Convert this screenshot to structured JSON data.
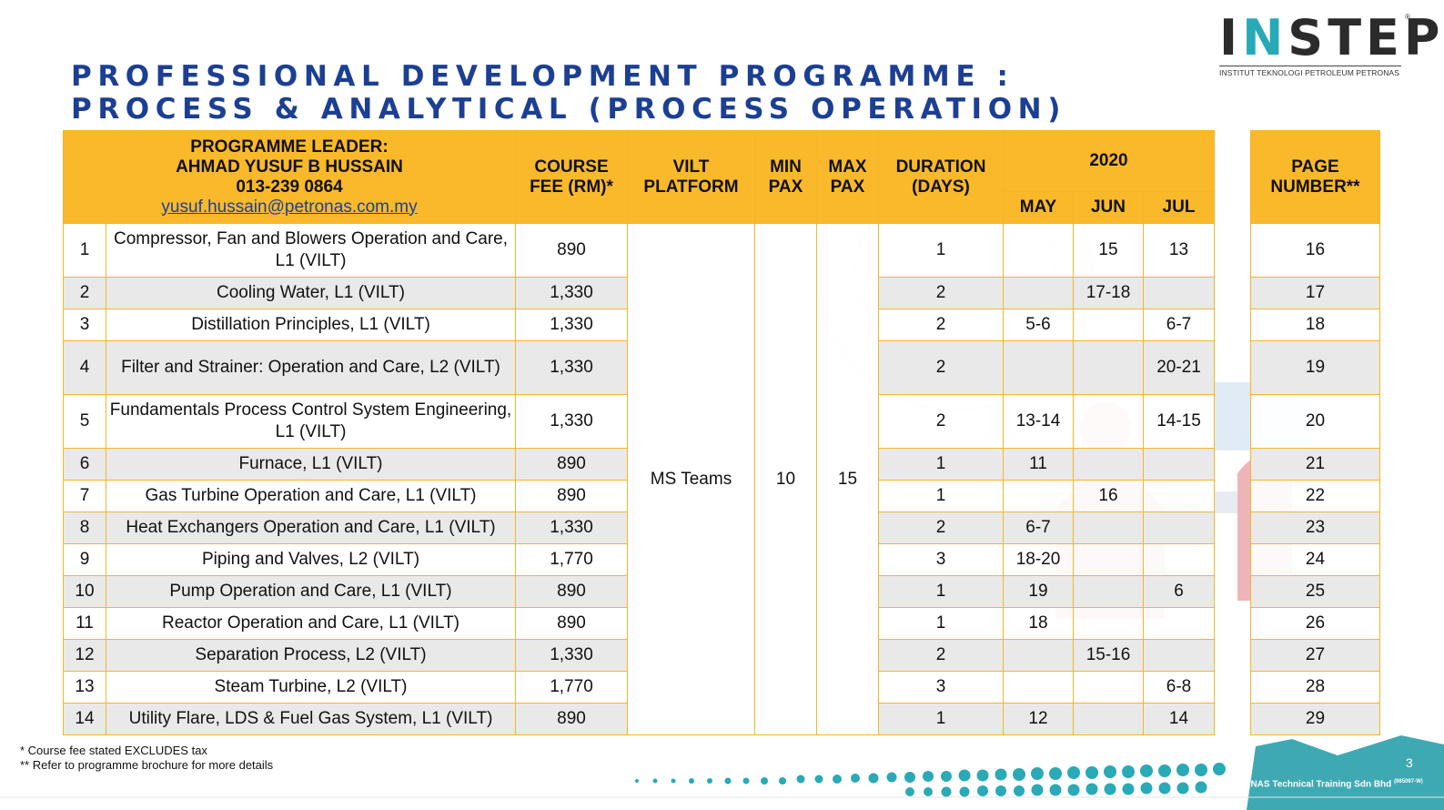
{
  "brand": {
    "logo_text_pre": "I",
    "logo_text_accent": "N",
    "logo_text_post": "STEP",
    "logo_reg": "®",
    "logo_subtitle": "INSTITUT TEKNOLOGI PETROLEUM PETRONAS",
    "colors": {
      "title": "#1c3f94",
      "header": "#fab92a",
      "accent": "#27a9b8"
    }
  },
  "title_lines": [
    "PROFESSIONAL DEVELOPMENT PROGRAMME :",
    "PROCESS & ANALYTICAL (PROCESS OPERATION)"
  ],
  "leader": {
    "label": "PROGRAMME LEADER:",
    "name": "AHMAD YUSUF B HUSSAIN",
    "phone": "013-239 0864",
    "email": "yusuf.hussain@petronas.com.my"
  },
  "headers": {
    "course_fee": "COURSE FEE (RM)*",
    "vilt_platform": "VILT PLATFORM",
    "min_pax": "MIN PAX",
    "max_pax": "MAX PAX",
    "duration": "DURATION (DAYS)",
    "year": "2020",
    "months": [
      "MAY",
      "JUN",
      "JUL"
    ],
    "page_number": "PAGE NUMBER**"
  },
  "shared": {
    "platform": "MS Teams",
    "min_pax": "10",
    "max_pax": "15"
  },
  "rows": [
    {
      "no": "1",
      "title": "Compressor, Fan and Blowers Operation and Care, L1 (VILT)",
      "fee": "890",
      "days": "1",
      "may": "",
      "jun": "15",
      "jul": "13",
      "page": "16"
    },
    {
      "no": "2",
      "title": "Cooling Water, L1 (VILT)",
      "fee": "1,330",
      "days": "2",
      "may": "",
      "jun": "17-18",
      "jul": "",
      "page": "17"
    },
    {
      "no": "3",
      "title": "Distillation Principles, L1 (VILT)",
      "fee": "1,330",
      "days": "2",
      "may": "5-6",
      "jun": "",
      "jul": "6-7",
      "page": "18"
    },
    {
      "no": "4",
      "title": "Filter and Strainer: Operation and Care, L2 (VILT)",
      "fee": "1,330",
      "days": "2",
      "may": "",
      "jun": "",
      "jul": "20-21",
      "page": "19"
    },
    {
      "no": "5",
      "title": "Fundamentals Process Control System Engineering, L1 (VILT)",
      "fee": "1,330",
      "days": "2",
      "may": "13-14",
      "jun": "",
      "jul": "14-15",
      "page": "20"
    },
    {
      "no": "6",
      "title": "Furnace, L1 (VILT)",
      "fee": "890",
      "days": "1",
      "may": "11",
      "jun": "",
      "jul": "",
      "page": "21"
    },
    {
      "no": "7",
      "title": "Gas Turbine Operation and Care, L1 (VILT)",
      "fee": "890",
      "days": "1",
      "may": "",
      "jun": "16",
      "jul": "",
      "page": "22"
    },
    {
      "no": "8",
      "title": "Heat Exchangers Operation and Care, L1 (VILT)",
      "fee": "1,330",
      "days": "2",
      "may": "6-7",
      "jun": "",
      "jul": "",
      "page": "23"
    },
    {
      "no": "9",
      "title": "Piping and Valves, L2 (VILT)",
      "fee": "1,770",
      "days": "3",
      "may": "18-20",
      "jun": "",
      "jul": "",
      "page": "24"
    },
    {
      "no": "10",
      "title": "Pump Operation and Care, L1 (VILT)",
      "fee": "890",
      "days": "1",
      "may": "19",
      "jun": "",
      "jul": "6",
      "page": "25"
    },
    {
      "no": "11",
      "title": "Reactor Operation and Care, L1 (VILT)",
      "fee": "890",
      "days": "1",
      "may": "18",
      "jun": "",
      "jul": "",
      "page": "26"
    },
    {
      "no": "12",
      "title": "Separation Process, L2 (VILT)",
      "fee": "1,330",
      "days": "2",
      "may": "",
      "jun": "15-16",
      "jul": "",
      "page": "27"
    },
    {
      "no": "13",
      "title": "Steam Turbine, L2 (VILT)",
      "fee": "1,770",
      "days": "3",
      "may": "",
      "jun": "",
      "jul": "6-8",
      "page": "28"
    },
    {
      "no": "14",
      "title": "Utility Flare, LDS & Fuel Gas System, L1 (VILT)",
      "fee": "890",
      "days": "1",
      "may": "12",
      "jun": "",
      "jul": "14",
      "page": "29"
    }
  ],
  "footnotes": [
    "* Course fee stated EXCLUDES tax",
    "** Refer to programme brochure for more details"
  ],
  "company": "PETRONAS Technical Training Sdn Bhd",
  "company_reg": "(985097-W)",
  "slide_number": "3"
}
